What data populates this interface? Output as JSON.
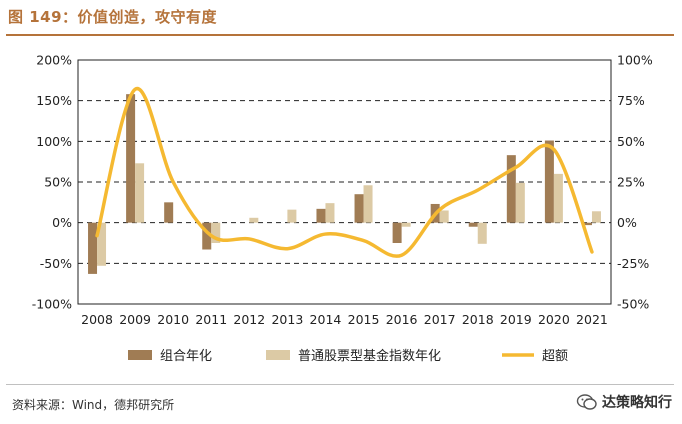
{
  "header": {
    "title": "图 149：价值创造，攻守有度"
  },
  "footer": {
    "source": "资料来源：Wind，德邦研究所",
    "watermark": "达策略知行",
    "watermark_icon": "wechat-icon"
  },
  "colors": {
    "portfolio": "#a07c54",
    "benchmark": "#dccaa5",
    "excess": "#f5b931",
    "title": "#b5733a"
  },
  "chart_data": {
    "type": "bar",
    "categories": [
      "2008",
      "2009",
      "2010",
      "2011",
      "2012",
      "2013",
      "2014",
      "2015",
      "2016",
      "2017",
      "2018",
      "2019",
      "2020",
      "2021"
    ],
    "series": [
      {
        "name": "组合年化",
        "type": "bar",
        "axis": "left",
        "values": [
          -63,
          158,
          25,
          -33,
          0,
          0,
          17,
          35,
          -25,
          23,
          -5,
          83,
          101,
          -3
        ]
      },
      {
        "name": "普通股票型基金指数年化",
        "type": "bar",
        "axis": "left",
        "values": [
          -53,
          73,
          0,
          -25,
          6,
          16,
          24,
          46,
          -5,
          15,
          -26,
          49,
          60,
          14
        ]
      },
      {
        "name": "超额",
        "type": "line",
        "axis": "right",
        "values": [
          -8,
          82,
          25,
          -8,
          -10,
          -16,
          -7,
          -11,
          -20,
          8,
          20,
          34,
          45,
          -18
        ]
      }
    ],
    "left_axis": {
      "ticks": [
        "200%",
        "150%",
        "100%",
        "50%",
        "0%",
        "-50%",
        "-100%"
      ],
      "ylim": [
        -100,
        200
      ]
    },
    "right_axis": {
      "ticks": [
        "100%",
        "75%",
        "50%",
        "25%",
        "0%",
        "-25%",
        "-50%"
      ],
      "ylim": [
        -50,
        100
      ]
    },
    "grid": "horizontal-dashed",
    "legend_position": "bottom"
  }
}
